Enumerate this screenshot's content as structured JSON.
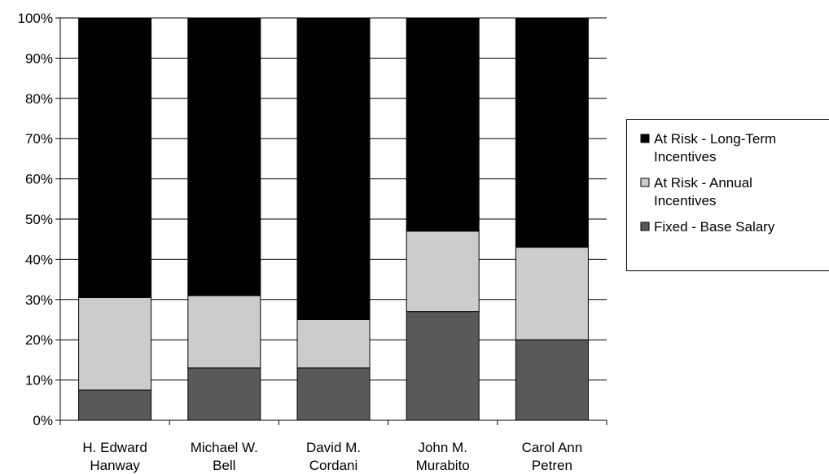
{
  "chart_data": {
    "type": "bar",
    "stacked": true,
    "percent_stacked": true,
    "categories": [
      "H. Edward Hanway",
      "Michael W. Bell",
      "David M. Cordani",
      "John M. Murabito",
      "Carol Ann Petren"
    ],
    "category_label_lines": [
      [
        "H. Edward",
        "Hanway"
      ],
      [
        "Michael W.",
        "Bell"
      ],
      [
        "David M.",
        "Cordani"
      ],
      [
        "John M.",
        "Murabito"
      ],
      [
        "Carol Ann",
        "Petren"
      ]
    ],
    "series": [
      {
        "name": "Fixed - Base Salary",
        "color": "#595959",
        "values": [
          7.5,
          13,
          13,
          27,
          20
        ]
      },
      {
        "name": "At Risk - Annual Incentives",
        "color": "#cccccc",
        "values": [
          23,
          18,
          12,
          20,
          23
        ]
      },
      {
        "name": "At Risk - Long-Term Incentives",
        "color": "#000000",
        "values": [
          69.5,
          69,
          75,
          53,
          57
        ]
      }
    ],
    "legend": {
      "position": "right",
      "order": [
        2,
        1,
        0
      ],
      "label_lines": [
        [
          "Fixed - Base Salary"
        ],
        [
          "At Risk - Annual",
          "Incentives"
        ],
        [
          "At Risk - Long-Term",
          "Incentives"
        ]
      ]
    },
    "yticks": [
      "0%",
      "10%",
      "20%",
      "30%",
      "40%",
      "50%",
      "60%",
      "70%",
      "80%",
      "90%",
      "100%"
    ],
    "ylim": [
      0,
      100
    ],
    "grid": true,
    "title": "",
    "xlabel": "",
    "ylabel": ""
  }
}
